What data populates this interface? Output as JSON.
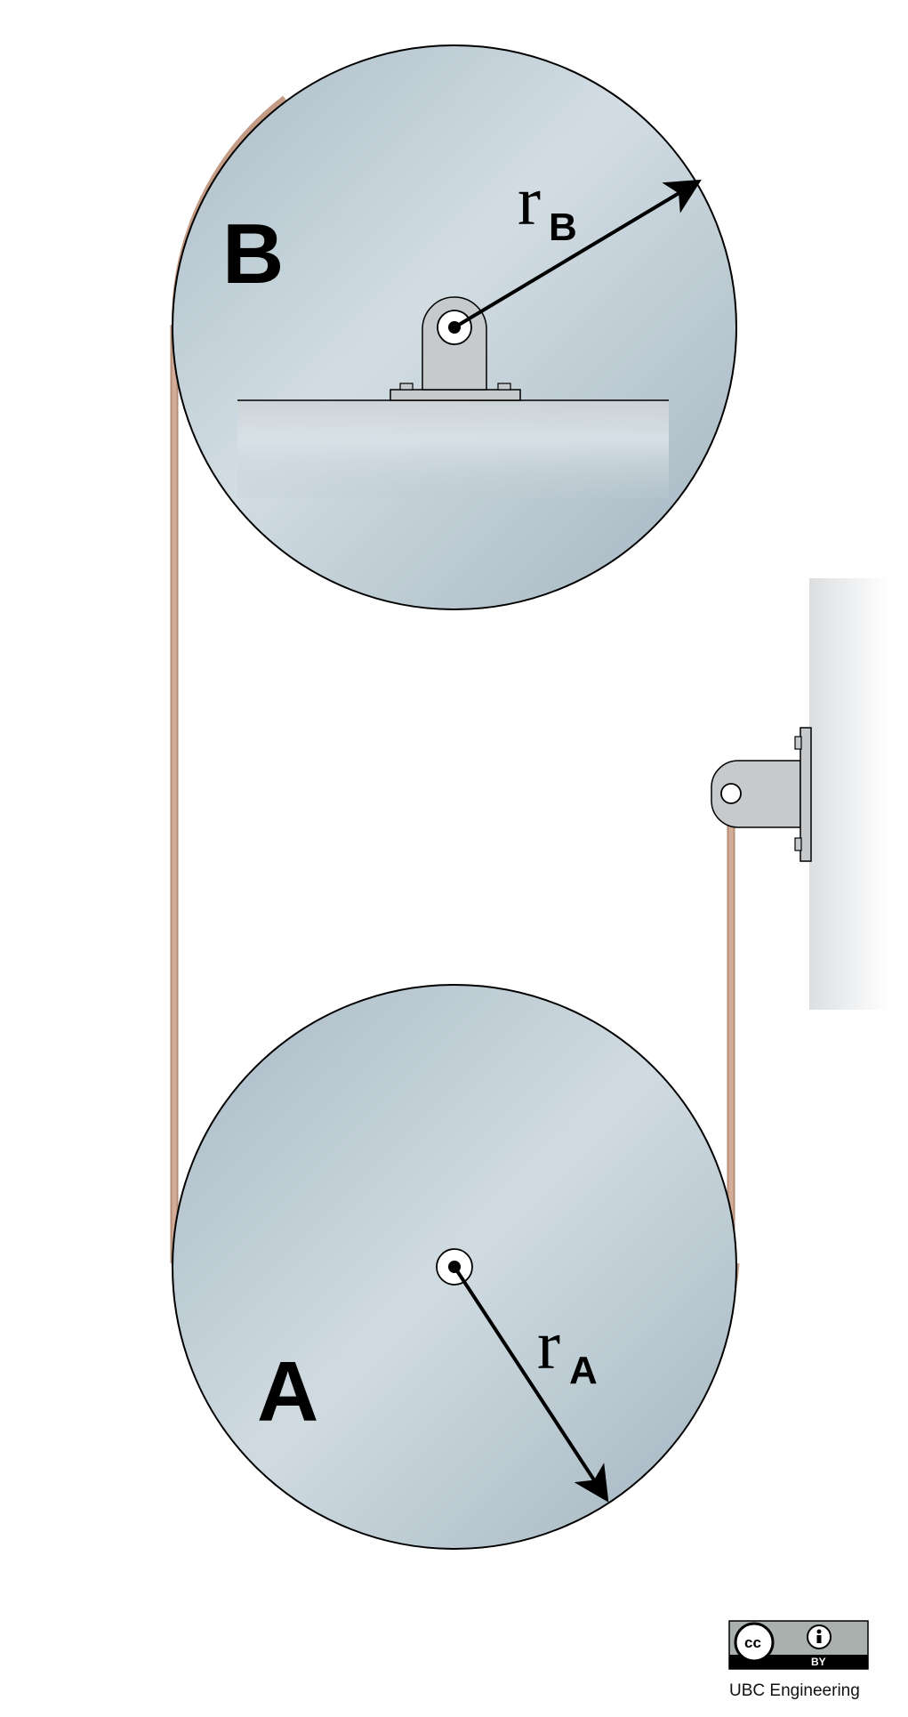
{
  "labels": {
    "pulley_b": "B",
    "pulley_a": "A",
    "radius_b_main": "r",
    "radius_b_sub": "B",
    "radius_a_main": "r",
    "radius_a_sub": "A"
  },
  "license": {
    "cc": "cc",
    "by": "BY",
    "credit": "UBC Engineering"
  },
  "colors": {
    "disk": "#b9c8d1",
    "disk_light": "#d5e0e6",
    "rope": "#c9a08a",
    "bracket": "#c3c7ca",
    "wall": "#e6e8ea",
    "outline": "#000000"
  }
}
